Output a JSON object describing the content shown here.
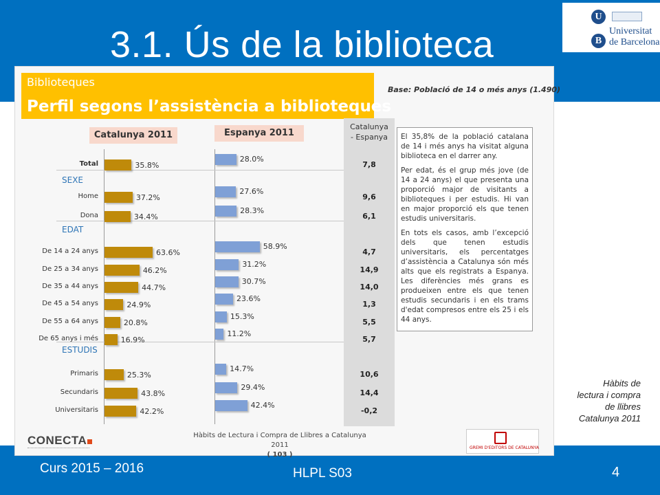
{
  "slide": {
    "title": "3.1. Ús de la biblioteca",
    "course": "Curs 2015 – 2016",
    "code": "HLPL S03",
    "page_number": "4",
    "side_caption": [
      "Hàbits de",
      "lectura i compra",
      "de llibres",
      "Catalunya 2011"
    ],
    "colors": {
      "band": "#0070c0",
      "header_yellow": "#ffc000",
      "cat_bar": "#bf8a0a",
      "esp_bar": "#7fa0d6"
    }
  },
  "logo": {
    "letters": [
      "U",
      "B"
    ],
    "line1": "Universitat",
    "line2": "de Barcelona"
  },
  "figure": {
    "header_small": "Biblioteques",
    "header_big": "Perfil segons l’assistència a biblioteques",
    "base_note": "Base: Població de 14 o més anys (1.490)",
    "tab_cat": "Catalunya 2011",
    "tab_esp": "Espanya 2011",
    "diff_header": [
      "Catalunya",
      "- Espanya"
    ],
    "sections": {
      "sexe": "SEXE",
      "edat": "EDAT",
      "estudis": "ESTUDIS"
    },
    "footer_logo": "CONECTA",
    "footer_caption": "Hàbits de Lectura i Compra de Llibres a Catalunya 2011",
    "footer_page": "( 103 )",
    "gremi_text": "GREMI D'EDITORS DE CATALUNYA",
    "text_paragraphs": [
      "El 35,8% de la població catalana de 14 i més anys ha visitat alguna biblioteca en el darrer any.",
      "Per edat, és el grup més jove (de 14 a 24 anys) el que presenta una proporció major de visitants a biblioteques i per estudis. Hi van en major proporció els que tenen estudis universitaris.",
      "En tots els casos, amb l’excepció dels que tenen estudis universitaris, els percentatges d’assistència a Catalunya són més alts que els registrats a Espanya. Les diferències més grans es produeixen entre els que tenen estudis secundaris i en els trams d'edat compresos entre els 25 i els 44 anys."
    ]
  },
  "chart_data": {
    "type": "bar",
    "title": "Perfil segons l’assistència a biblioteques",
    "categories": [
      "Total",
      "Home",
      "Dona",
      "De 14 a 24 anys",
      "De 25 a 34 anys",
      "De 35 a 44 anys",
      "De 45 a 54 anys",
      "De 55 a 64 anys",
      "De 65 anys i més",
      "Primaris",
      "Secundaris",
      "Universitaris"
    ],
    "series": [
      {
        "name": "Catalunya 2011",
        "values": [
          35.8,
          37.2,
          34.4,
          63.6,
          46.2,
          44.7,
          24.9,
          20.8,
          16.9,
          25.3,
          43.8,
          42.2
        ],
        "labels": [
          "35.8%",
          "37.2%",
          "34.4%",
          "63.6%",
          "46.2%",
          "44.7%",
          "24.9%",
          "20.8%",
          "16.9%",
          "25.3%",
          "43.8%",
          "42.2%"
        ]
      },
      {
        "name": "Espanya 2011",
        "values": [
          28.0,
          27.6,
          28.3,
          58.9,
          31.2,
          30.7,
          23.6,
          15.3,
          11.2,
          14.7,
          29.4,
          42.4
        ],
        "labels": [
          "28.0%",
          "27.6%",
          "28.3%",
          "58.9%",
          "31.2%",
          "30.7%",
          "23.6%",
          "15.3%",
          "11.2%",
          "14.7%",
          "29.4%",
          "42.4%"
        ]
      }
    ],
    "differences": [
      "7,8",
      "9,6",
      "6,1",
      "4,7",
      "14,9",
      "14,0",
      "1,3",
      "5,5",
      "5,7",
      "10,6",
      "14,4",
      "-0,2"
    ],
    "groups": [
      {
        "label": "",
        "rows": [
          0
        ]
      },
      {
        "label": "SEXE",
        "rows": [
          1,
          2
        ]
      },
      {
        "label": "EDAT",
        "rows": [
          3,
          4,
          5,
          6,
          7,
          8
        ]
      },
      {
        "label": "ESTUDIS",
        "rows": [
          9,
          10,
          11
        ]
      }
    ]
  }
}
